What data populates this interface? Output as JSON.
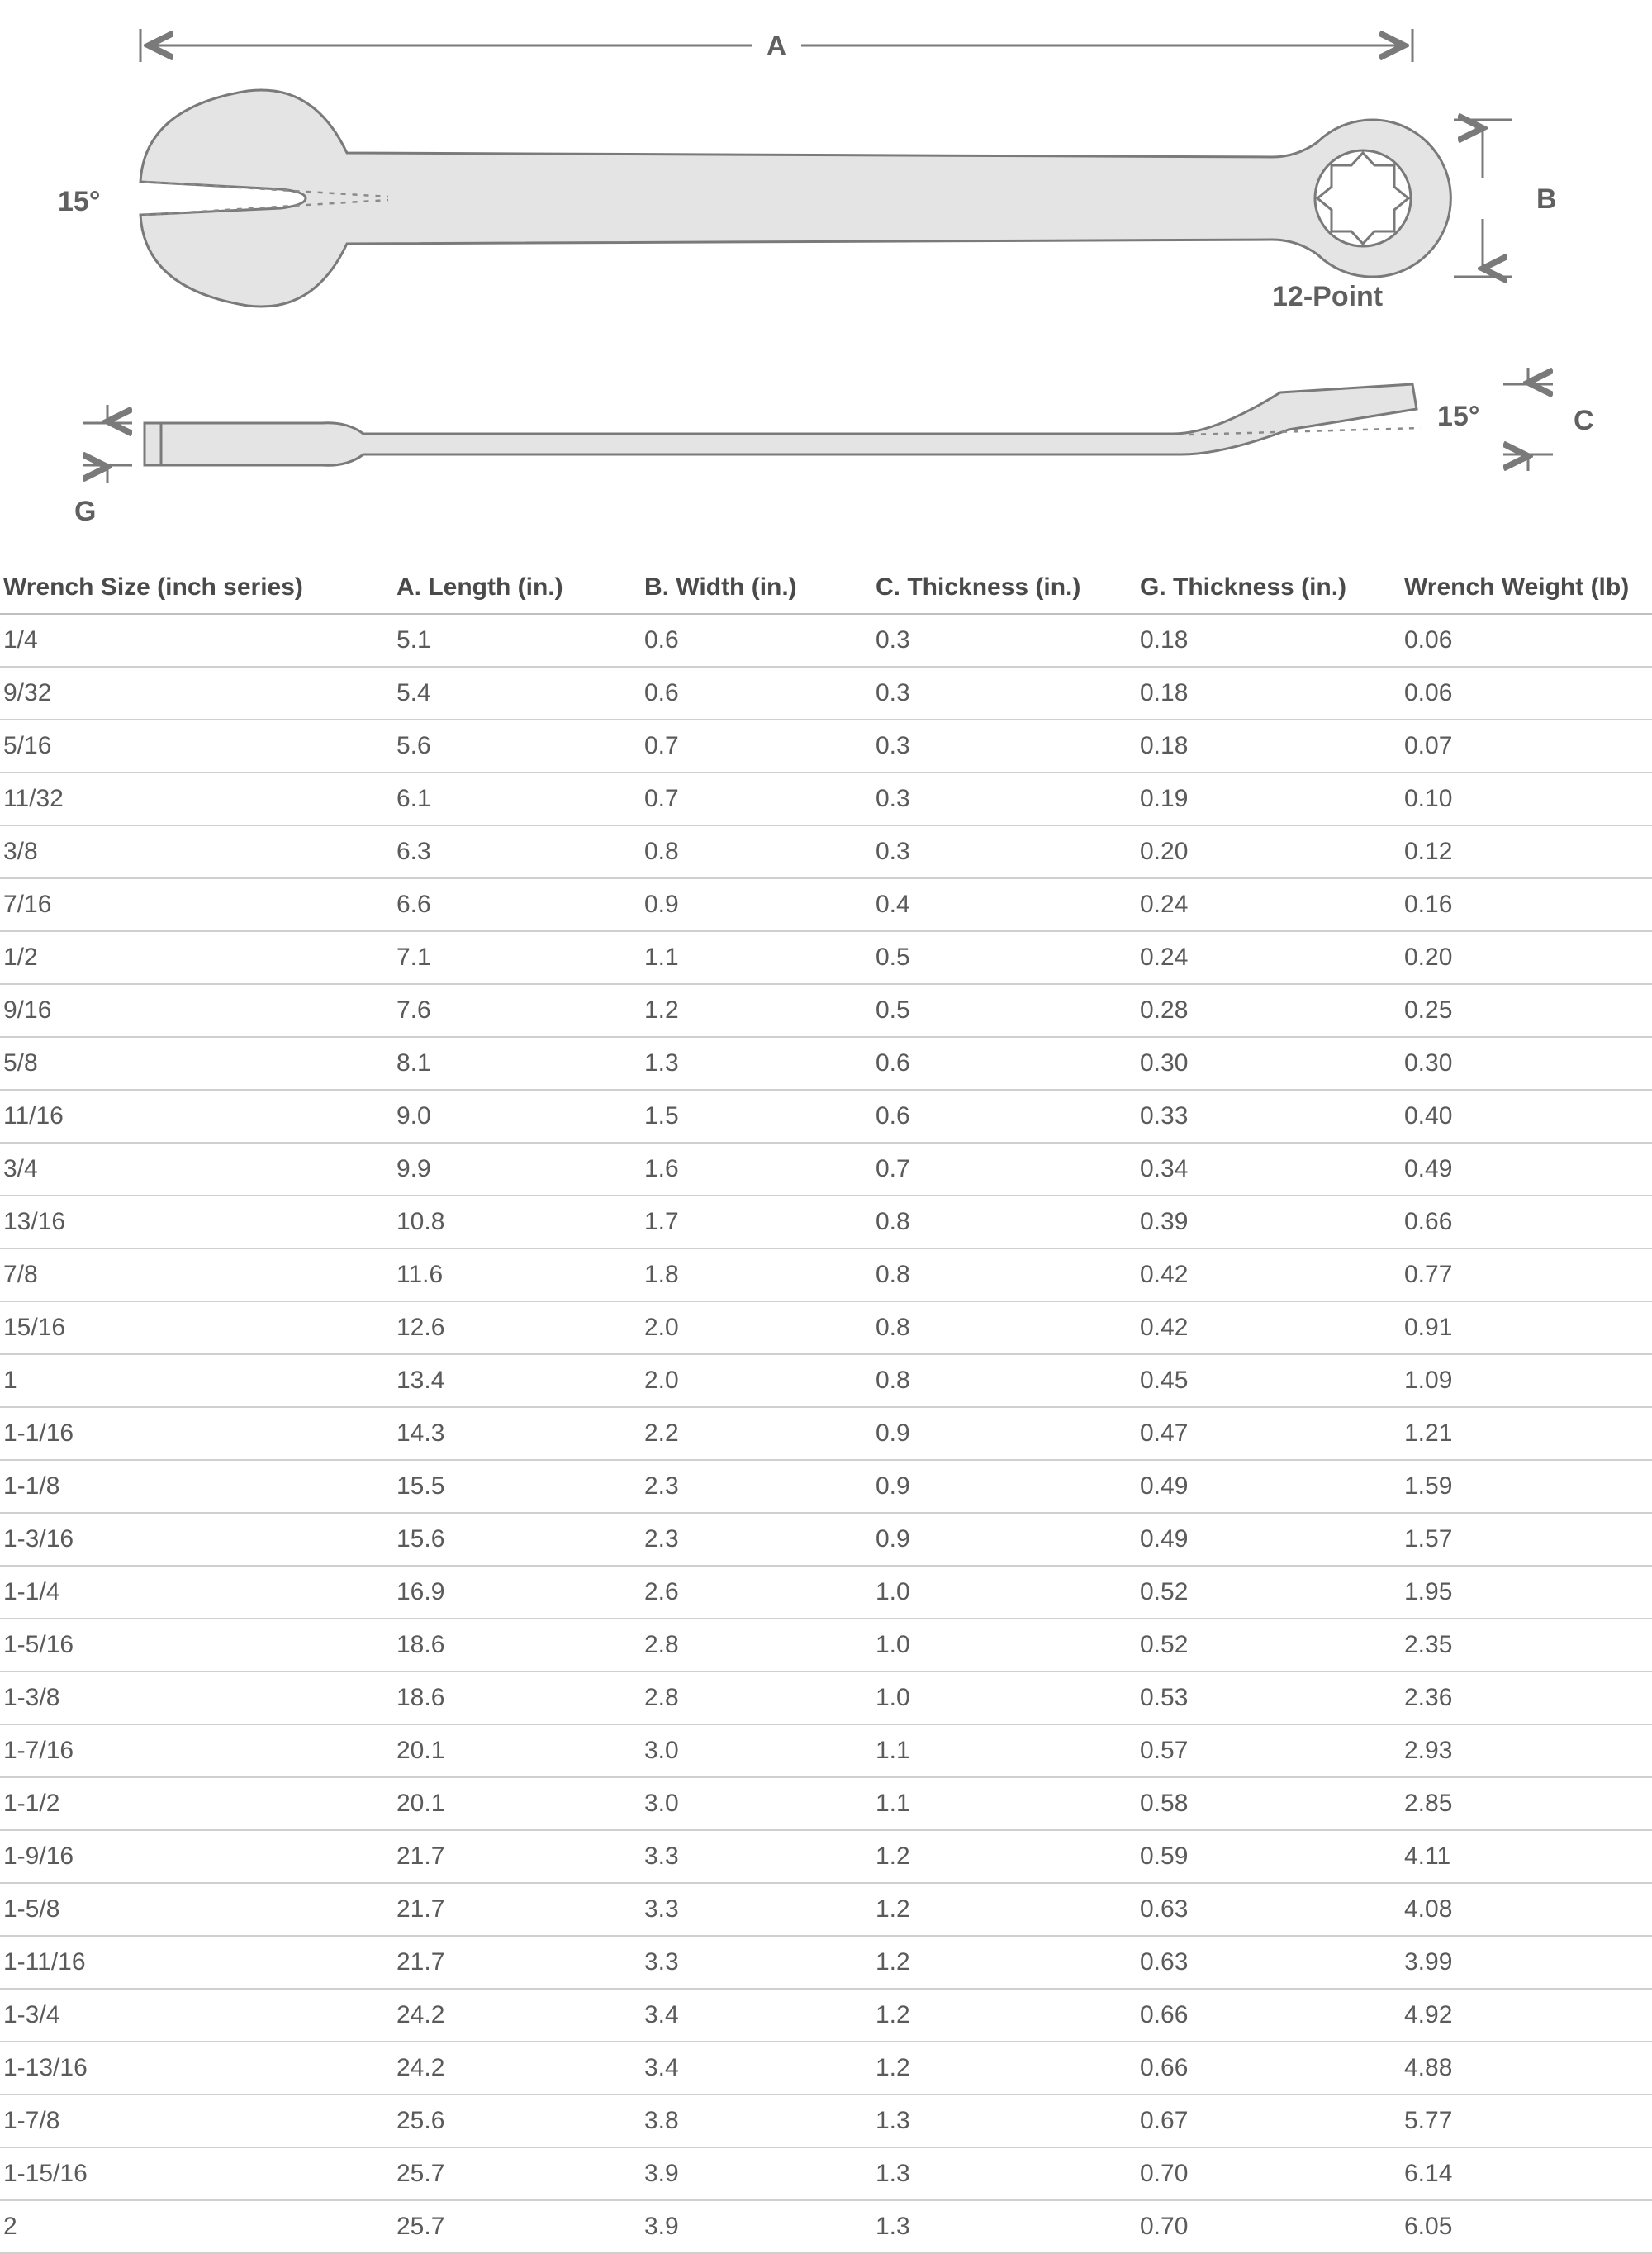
{
  "diagram": {
    "dim_A": "A",
    "dim_B": "B",
    "dim_C": "C",
    "dim_G": "G",
    "angle_label": "15°",
    "point_label": "12-Point",
    "colors": {
      "fill": "#e4e4e4",
      "stroke": "#7a7a7a",
      "dim_line": "#7a7a7a",
      "dashed": "#8a8a8a",
      "text": "#606060"
    },
    "font_size_label": 34,
    "font_weight_label": "700"
  },
  "table": {
    "columns": [
      "Wrench Size (inch series)",
      "A. Length (in.)",
      "B. Width (in.)",
      "C. Thickness (in.)",
      "G. Thickness (in.)",
      "Wrench Weight (lb)"
    ],
    "rows": [
      [
        "1/4",
        "5.1",
        "0.6",
        "0.3",
        "0.18",
        "0.06"
      ],
      [
        "9/32",
        "5.4",
        "0.6",
        "0.3",
        "0.18",
        "0.06"
      ],
      [
        "5/16",
        "5.6",
        "0.7",
        "0.3",
        "0.18",
        "0.07"
      ],
      [
        "11/32",
        "6.1",
        "0.7",
        "0.3",
        "0.19",
        "0.10"
      ],
      [
        "3/8",
        "6.3",
        "0.8",
        "0.3",
        "0.20",
        "0.12"
      ],
      [
        "7/16",
        "6.6",
        "0.9",
        "0.4",
        "0.24",
        "0.16"
      ],
      [
        "1/2",
        "7.1",
        "1.1",
        "0.5",
        "0.24",
        "0.20"
      ],
      [
        "9/16",
        "7.6",
        "1.2",
        "0.5",
        "0.28",
        "0.25"
      ],
      [
        "5/8",
        "8.1",
        "1.3",
        "0.6",
        "0.30",
        "0.30"
      ],
      [
        "11/16",
        "9.0",
        "1.5",
        "0.6",
        "0.33",
        "0.40"
      ],
      [
        "3/4",
        "9.9",
        "1.6",
        "0.7",
        "0.34",
        "0.49"
      ],
      [
        "13/16",
        "10.8",
        "1.7",
        "0.8",
        "0.39",
        "0.66"
      ],
      [
        "7/8",
        "11.6",
        "1.8",
        "0.8",
        "0.42",
        "0.77"
      ],
      [
        "15/16",
        "12.6",
        "2.0",
        "0.8",
        "0.42",
        "0.91"
      ],
      [
        "1",
        "13.4",
        "2.0",
        "0.8",
        "0.45",
        "1.09"
      ],
      [
        "1-1/16",
        "14.3",
        "2.2",
        "0.9",
        "0.47",
        "1.21"
      ],
      [
        "1-1/8",
        "15.5",
        "2.3",
        "0.9",
        "0.49",
        "1.59"
      ],
      [
        "1-3/16",
        "15.6",
        "2.3",
        "0.9",
        "0.49",
        "1.57"
      ],
      [
        "1-1/4",
        "16.9",
        "2.6",
        "1.0",
        "0.52",
        "1.95"
      ],
      [
        "1-5/16",
        "18.6",
        "2.8",
        "1.0",
        "0.52",
        "2.35"
      ],
      [
        "1-3/8",
        "18.6",
        "2.8",
        "1.0",
        "0.53",
        "2.36"
      ],
      [
        "1-7/16",
        "20.1",
        "3.0",
        "1.1",
        "0.57",
        "2.93"
      ],
      [
        "1-1/2",
        "20.1",
        "3.0",
        "1.1",
        "0.58",
        "2.85"
      ],
      [
        "1-9/16",
        "21.7",
        "3.3",
        "1.2",
        "0.59",
        "4.11"
      ],
      [
        "1-5/8",
        "21.7",
        "3.3",
        "1.2",
        "0.63",
        "4.08"
      ],
      [
        "1-11/16",
        "21.7",
        "3.3",
        "1.2",
        "0.63",
        "3.99"
      ],
      [
        "1-3/4",
        "24.2",
        "3.4",
        "1.2",
        "0.66",
        "4.92"
      ],
      [
        "1-13/16",
        "24.2",
        "3.4",
        "1.2",
        "0.66",
        "4.88"
      ],
      [
        "1-7/8",
        "25.6",
        "3.8",
        "1.3",
        "0.67",
        "5.77"
      ],
      [
        "1-15/16",
        "25.7",
        "3.9",
        "1.3",
        "0.70",
        "6.14"
      ],
      [
        "2",
        "25.7",
        "3.9",
        "1.3",
        "0.70",
        "6.05"
      ]
    ],
    "header_color": "#4a4a4a",
    "row_color": "#5a5a5a",
    "border_color": "#d0d0d0",
    "font_size": 30
  }
}
